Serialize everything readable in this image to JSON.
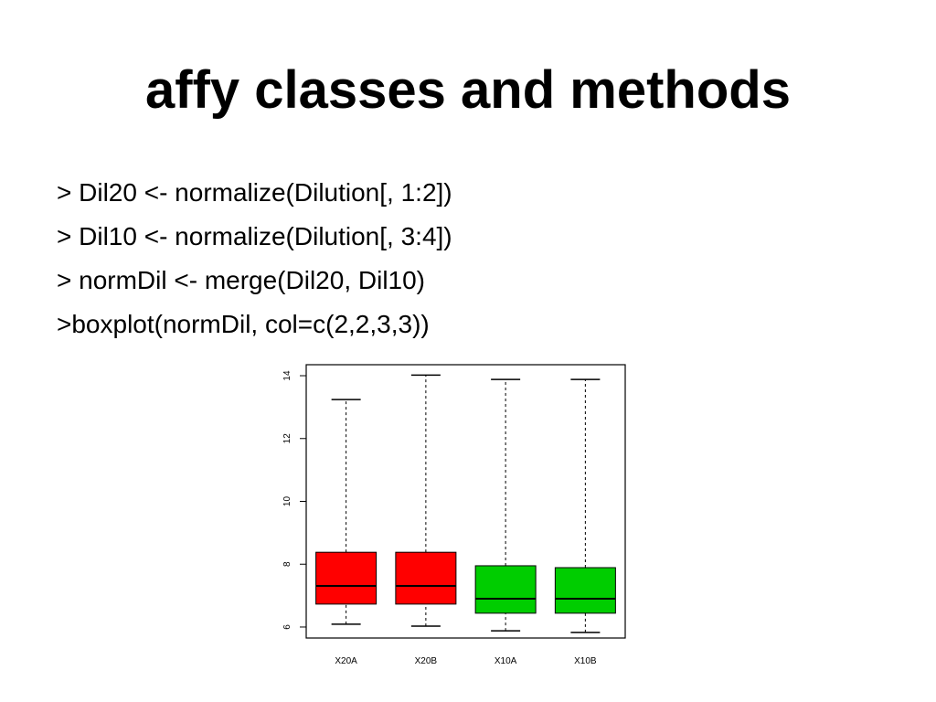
{
  "slide": {
    "title": "affy classes and methods",
    "lines": [
      "> Dil20 <- normalize(Dilution[, 1:2])",
      "> Dil10 <- normalize(Dilution[, 3:4])",
      "> normDil <- merge(Dil20, Dil10)",
      ">boxplot(normDil, col=c(2,2,3,3))"
    ]
  },
  "chart_data": {
    "type": "boxplot",
    "categories": [
      "X20A",
      "X20B",
      "X10A",
      "X10B"
    ],
    "colors": [
      "#ff0000",
      "#ff0000",
      "#00cd00",
      "#00cd00"
    ],
    "min": [
      6.09,
      6.03,
      5.88,
      5.83
    ],
    "q1": [
      6.73,
      6.73,
      6.44,
      6.44
    ],
    "median": [
      7.31,
      7.31,
      6.9,
      6.9
    ],
    "q3": [
      8.38,
      8.38,
      7.95,
      7.89
    ],
    "max": [
      13.24,
      14.02,
      13.88,
      13.88
    ],
    "ylim": [
      5.65,
      14.35
    ],
    "yticks": [
      6,
      8,
      10,
      12,
      14
    ]
  }
}
